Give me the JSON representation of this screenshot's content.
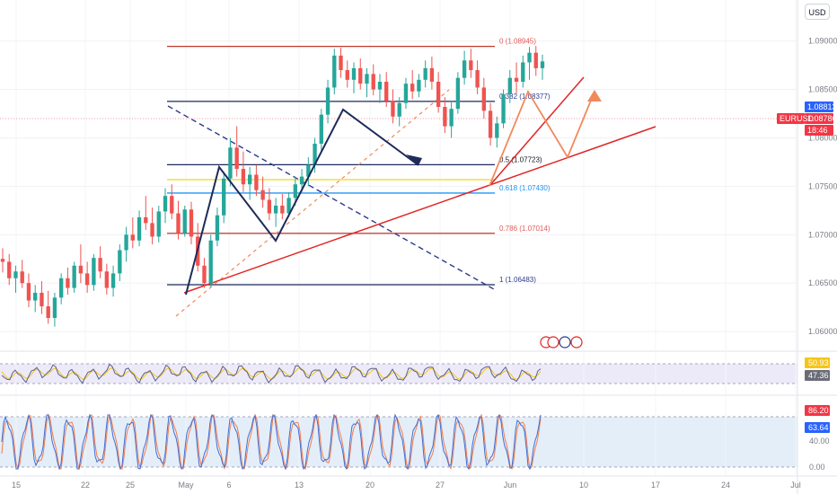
{
  "currency_button": "USD",
  "symbol_label": "EURUSD",
  "chart_data": [
    {
      "type": "candlestick",
      "title": "",
      "x_ticks": [
        "15",
        "22",
        "25",
        "May",
        "6",
        "13",
        "20",
        "27",
        "Jun",
        "10",
        "17",
        "24",
        "Jul"
      ],
      "y_ticks": [
        "1.09000",
        "1.08500",
        "1.08000",
        "1.07500",
        "1.07000",
        "1.06500",
        "1.06000"
      ],
      "ylim": [
        1.0588,
        1.0935
      ],
      "price_tags": [
        {
          "value": "1.08813",
          "color": "#2962ff"
        },
        {
          "value": "1.08786",
          "color": "#f23645"
        },
        {
          "value": "18:46",
          "color": "#f23645"
        }
      ],
      "fibonacci": [
        {
          "label": "0 (1.08945)",
          "level": 1.08945,
          "color": "#e05a5a"
        },
        {
          "label": "0.382 (1.08377)",
          "level": 1.08377,
          "color": "#2d3a8c"
        },
        {
          "label": "0.5 (1.07723)",
          "level": 1.07723,
          "color": "#131722"
        },
        {
          "label": "0.618 (1.07430)",
          "level": 1.0743,
          "color": "#2196f3"
        },
        {
          "label": "0.786 (1.07014)",
          "level": 1.07014,
          "color": "#e05a5a"
        },
        {
          "label": "1 (1.06483)",
          "level": 1.06483,
          "color": "#2d3a8c"
        }
      ],
      "price_path": [
        [
          1.0675,
          1.0686,
          1.0661,
          1.0672
        ],
        [
          1.0672,
          1.068,
          1.0648,
          1.0655
        ],
        [
          1.0655,
          1.0668,
          1.064,
          1.0662
        ],
        [
          1.0662,
          1.0674,
          1.0645,
          1.065
        ],
        [
          1.065,
          1.066,
          1.0625,
          1.0632
        ],
        [
          1.0632,
          1.0648,
          1.062,
          1.064
        ],
        [
          1.064,
          1.0652,
          1.0618,
          1.0626
        ],
        [
          1.0626,
          1.0642,
          1.0608,
          1.0614
        ],
        [
          1.0614,
          1.064,
          1.0605,
          1.0635
        ],
        [
          1.0635,
          1.066,
          1.0628,
          1.0655
        ],
        [
          1.0655,
          1.0666,
          1.0638,
          1.0645
        ],
        [
          1.0645,
          1.0672,
          1.064,
          1.0668
        ],
        [
          1.0668,
          1.069,
          1.065,
          1.066
        ],
        [
          1.066,
          1.0672,
          1.064,
          1.0648
        ],
        [
          1.0648,
          1.068,
          1.0642,
          1.0676
        ],
        [
          1.0676,
          1.0688,
          1.0655,
          1.0662
        ],
        [
          1.0662,
          1.067,
          1.0638,
          1.0645
        ],
        [
          1.0645,
          1.0668,
          1.0636,
          1.066
        ],
        [
          1.066,
          1.069,
          1.0652,
          1.0684
        ],
        [
          1.0684,
          1.0708,
          1.0672,
          1.07
        ],
        [
          1.07,
          1.0718,
          1.0686,
          1.0694
        ],
        [
          1.0694,
          1.0725,
          1.0688,
          1.0718
        ],
        [
          1.0718,
          1.074,
          1.0705,
          1.0712
        ],
        [
          1.0712,
          1.0728,
          1.069,
          1.0698
        ],
        [
          1.0698,
          1.073,
          1.0692,
          1.0724
        ],
        [
          1.0724,
          1.0748,
          1.0712,
          1.074
        ],
        [
          1.074,
          1.0752,
          1.0716,
          1.0722
        ],
        [
          1.0722,
          1.0735,
          1.0695,
          1.0702
        ],
        [
          1.0702,
          1.073,
          1.0698,
          1.0726
        ],
        [
          1.0726,
          1.0734,
          1.069,
          1.0698
        ],
        [
          1.0698,
          1.0712,
          1.0662,
          1.0668
        ],
        [
          1.0668,
          1.0676,
          1.0645,
          1.065
        ],
        [
          1.065,
          1.07,
          1.0646,
          1.0694
        ],
        [
          1.0694,
          1.0728,
          1.0688,
          1.072
        ],
        [
          1.072,
          1.0765,
          1.0712,
          1.0758
        ],
        [
          1.0758,
          1.08,
          1.075,
          1.079
        ],
        [
          1.079,
          1.0812,
          1.076,
          1.0768
        ],
        [
          1.0768,
          1.0786,
          1.0744,
          1.0752
        ],
        [
          1.0752,
          1.077,
          1.0736,
          1.0762
        ],
        [
          1.0762,
          1.0772,
          1.074,
          1.0746
        ],
        [
          1.0746,
          1.076,
          1.0728,
          1.0736
        ],
        [
          1.0736,
          1.0748,
          1.0715,
          1.0722
        ],
        [
          1.0722,
          1.0738,
          1.0708,
          1.073
        ],
        [
          1.073,
          1.0742,
          1.0716,
          1.0722
        ],
        [
          1.0722,
          1.0744,
          1.0718,
          1.0738
        ],
        [
          1.0738,
          1.076,
          1.073,
          1.0752
        ],
        [
          1.0752,
          1.0768,
          1.0744,
          1.076
        ],
        [
          1.076,
          1.078,
          1.075,
          1.0772
        ],
        [
          1.0772,
          1.08,
          1.0764,
          1.0794
        ],
        [
          1.0794,
          1.083,
          1.0786,
          1.0824
        ],
        [
          1.0824,
          1.086,
          1.0815,
          1.0852
        ],
        [
          1.0852,
          1.0892,
          1.0845,
          1.0885
        ],
        [
          1.0885,
          1.0893,
          1.0862,
          1.087
        ],
        [
          1.087,
          1.088,
          1.0852,
          1.086
        ],
        [
          1.086,
          1.0878,
          1.0846,
          1.0872
        ],
        [
          1.0872,
          1.0882,
          1.085,
          1.0856
        ],
        [
          1.0856,
          1.0872,
          1.0842,
          1.0866
        ],
        [
          1.0866,
          1.0876,
          1.0844,
          1.085
        ],
        [
          1.085,
          1.0866,
          1.0836,
          1.0858
        ],
        [
          1.0858,
          1.0868,
          1.0832,
          1.0838
        ],
        [
          1.0838,
          1.085,
          1.0815,
          1.0822
        ],
        [
          1.0822,
          1.0842,
          1.0812,
          1.0836
        ],
        [
          1.0836,
          1.0862,
          1.083,
          1.0856
        ],
        [
          1.0856,
          1.087,
          1.084,
          1.0848
        ],
        [
          1.0848,
          1.0866,
          1.0842,
          1.086
        ],
        [
          1.086,
          1.088,
          1.0852,
          1.0872
        ],
        [
          1.0872,
          1.0884,
          1.085,
          1.0858
        ],
        [
          1.0858,
          1.0868,
          1.0826,
          1.0832
        ],
        [
          1.0832,
          1.0842,
          1.0805,
          1.0812
        ],
        [
          1.0812,
          1.0838,
          1.08,
          1.083
        ],
        [
          1.083,
          1.0868,
          1.0825,
          1.0862
        ],
        [
          1.0862,
          1.089,
          1.0855,
          1.088
        ],
        [
          1.088,
          1.0892,
          1.0862,
          1.087
        ],
        [
          1.087,
          1.088,
          1.0845,
          1.0852
        ],
        [
          1.0852,
          1.0862,
          1.082,
          1.0828
        ],
        [
          1.0828,
          1.0836,
          1.0792,
          1.08
        ],
        [
          1.08,
          1.0822,
          1.079,
          1.0815
        ],
        [
          1.0815,
          1.085,
          1.081,
          1.0845
        ],
        [
          1.0845,
          1.087,
          1.0836,
          1.0862
        ],
        [
          1.0862,
          1.0878,
          1.0846,
          1.0858
        ],
        [
          1.0858,
          1.0885,
          1.0852,
          1.0878
        ],
        [
          1.0878,
          1.0894,
          1.086,
          1.0888
        ],
        [
          1.0888,
          1.0895,
          1.0864,
          1.0872
        ],
        [
          1.0872,
          1.0886,
          1.086,
          1.0879
        ]
      ],
      "rsi": {
        "values": [
          "50.93",
          "47.36"
        ],
        "value_colors": [
          "#f5c518",
          "#6a6d78"
        ]
      },
      "stochastic": {
        "values": [
          "86.20",
          "63.64"
        ],
        "value_colors": [
          "#f23645",
          "#2962ff"
        ],
        "ticks": [
          "40.00",
          "0.00"
        ]
      }
    }
  ]
}
